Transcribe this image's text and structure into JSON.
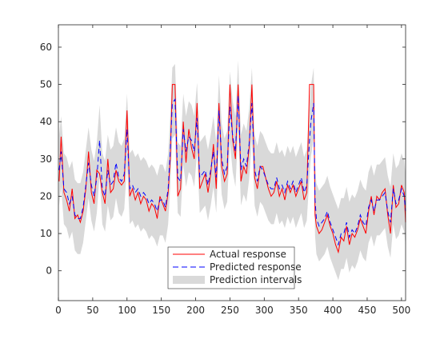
{
  "chart_data": {
    "type": "line",
    "title": "",
    "xlabel": "",
    "ylabel": "",
    "xlim": [
      0,
      506
    ],
    "ylim": [
      -8,
      66
    ],
    "xticks": [
      0,
      50,
      100,
      150,
      200,
      250,
      300,
      350,
      400,
      450,
      500
    ],
    "yticks": [
      0,
      10,
      20,
      30,
      40,
      50,
      60
    ],
    "grid": false,
    "legend_position": "bottom-center",
    "series": [
      {
        "name": "Actual response",
        "style": "solid",
        "color": "#ff0000",
        "x": [
          1,
          4,
          8,
          12,
          16,
          20,
          24,
          28,
          32,
          36,
          40,
          44,
          48,
          52,
          56,
          60,
          64,
          68,
          72,
          76,
          80,
          84,
          88,
          92,
          96,
          100,
          104,
          108,
          112,
          116,
          120,
          124,
          128,
          132,
          136,
          140,
          144,
          148,
          152,
          156,
          160,
          163,
          166,
          170,
          174,
          178,
          182,
          186,
          190,
          194,
          198,
          202,
          206,
          210,
          214,
          218,
          222,
          226,
          230,
          234,
          238,
          242,
          246,
          250,
          254,
          258,
          262,
          266,
          270,
          274,
          278,
          282,
          286,
          290,
          294,
          298,
          302,
          306,
          310,
          314,
          318,
          322,
          326,
          330,
          334,
          338,
          342,
          346,
          350,
          354,
          358,
          362,
          366,
          368,
          372,
          374,
          376,
          380,
          384,
          388,
          392,
          396,
          400,
          404,
          408,
          412,
          416,
          420,
          424,
          428,
          432,
          436,
          440,
          444,
          448,
          452,
          456,
          460,
          464,
          468,
          472,
          476,
          480,
          484,
          488,
          492,
          496,
          500,
          504,
          506
        ],
        "y": [
          24,
          36,
          21,
          19,
          16,
          22,
          14,
          15,
          13,
          16,
          22,
          32,
          21,
          18,
          27,
          26,
          21,
          18,
          30,
          21,
          22,
          27,
          24,
          23,
          24,
          43,
          20,
          22,
          19,
          21,
          18,
          20,
          19,
          16,
          18,
          17,
          14,
          20,
          18,
          16,
          21,
          30,
          50,
          50,
          20,
          22,
          40,
          29,
          38,
          33,
          30,
          45,
          22,
          24,
          26,
          21,
          26,
          34,
          22,
          45,
          28,
          24,
          26,
          50,
          35,
          30,
          50,
          24,
          28,
          26,
          33,
          50,
          25,
          22,
          28,
          28,
          25,
          22,
          20,
          21,
          24,
          20,
          22,
          19,
          23,
          21,
          23,
          20,
          22,
          24,
          19,
          21,
          50,
          50,
          50,
          15,
          12,
          10,
          11,
          13,
          15,
          12,
          10,
          7,
          5,
          9,
          8,
          12,
          7,
          10,
          9,
          11,
          14,
          12,
          10,
          16,
          20,
          15,
          20,
          19,
          21,
          22,
          15,
          10,
          23,
          17,
          18,
          23,
          21,
          13
        ]
      },
      {
        "name": "Predicted response",
        "style": "dashed",
        "color": "#0000ff",
        "x": [
          1,
          4,
          8,
          12,
          16,
          20,
          24,
          28,
          32,
          36,
          40,
          44,
          48,
          52,
          56,
          60,
          64,
          68,
          72,
          76,
          80,
          84,
          88,
          92,
          96,
          100,
          104,
          108,
          112,
          116,
          120,
          124,
          128,
          132,
          136,
          140,
          144,
          148,
          152,
          156,
          160,
          163,
          166,
          170,
          174,
          178,
          182,
          186,
          190,
          194,
          198,
          202,
          206,
          210,
          214,
          218,
          222,
          226,
          230,
          234,
          238,
          242,
          246,
          250,
          254,
          258,
          262,
          266,
          270,
          274,
          278,
          282,
          286,
          290,
          294,
          298,
          302,
          306,
          310,
          314,
          318,
          322,
          326,
          330,
          334,
          338,
          342,
          346,
          350,
          354,
          358,
          362,
          366,
          368,
          372,
          374,
          376,
          380,
          384,
          388,
          392,
          396,
          400,
          404,
          408,
          412,
          416,
          420,
          424,
          428,
          432,
          436,
          440,
          444,
          448,
          452,
          456,
          460,
          464,
          468,
          472,
          476,
          480,
          484,
          488,
          492,
          496,
          500,
          504,
          506
        ],
        "y": [
          27,
          32,
          22,
          21,
          18,
          20,
          15,
          14,
          14,
          17,
          23,
          29,
          23,
          20,
          25,
          35,
          22,
          20,
          27,
          23,
          24,
          29,
          25,
          24,
          26,
          38,
          22,
          23,
          21,
          22,
          20,
          21,
          20,
          18,
          19,
          18,
          16,
          19,
          19,
          17,
          22,
          32,
          45,
          46,
          25,
          24,
          38,
          32,
          36,
          35,
          32,
          41,
          25,
          26,
          27,
          23,
          27,
          32,
          25,
          43,
          30,
          26,
          28,
          44,
          36,
          32,
          47,
          27,
          30,
          28,
          34,
          45,
          27,
          24,
          28,
          27,
          25,
          23,
          22,
          22,
          25,
          22,
          23,
          21,
          24,
          22,
          24,
          21,
          23,
          25,
          21,
          23,
          35,
          40,
          45,
          19,
          14,
          12,
          13,
          14,
          16,
          13,
          11,
          9,
          7,
          10,
          10,
          13,
          9,
          11,
          10,
          12,
          15,
          13,
          12,
          17,
          19,
          16,
          19,
          19,
          20,
          21,
          16,
          13,
          22,
          18,
          19,
          22,
          20,
          16
        ]
      },
      {
        "name": "Prediction intervals",
        "style": "band",
        "color": "#d9d9d9",
        "band_halfwidth": 9.5
      }
    ]
  }
}
